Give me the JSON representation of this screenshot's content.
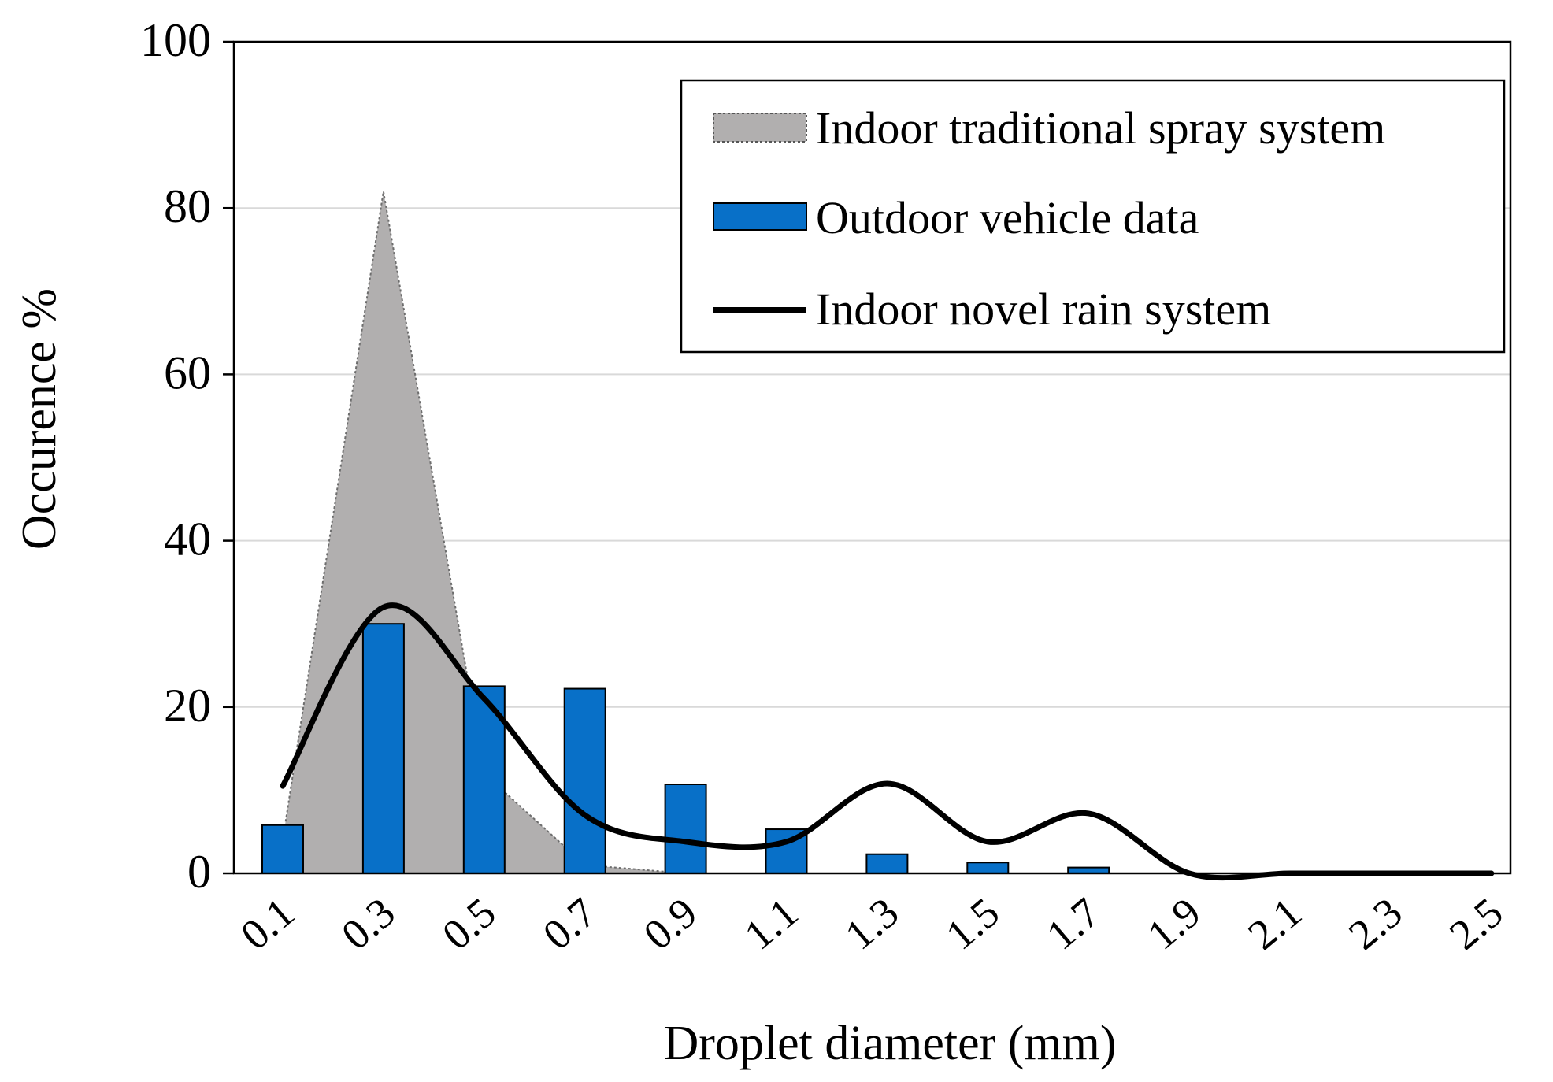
{
  "chart_data": {
    "type": "bar",
    "title": "",
    "xlabel": "Droplet diameter (mm)",
    "ylabel": "Occurence %",
    "ylim": [
      0,
      100
    ],
    "yticks": [
      "0",
      "20",
      "40",
      "60",
      "80",
      "100"
    ],
    "categories": [
      "0.1",
      "0.3",
      "0.5",
      "0.7",
      "0.9",
      "1.1",
      "1.3",
      "1.5",
      "1.7",
      "1.9",
      "2.1",
      "2.3",
      "2.5"
    ],
    "grid": true,
    "legend_position": "top-right",
    "series": [
      {
        "name": "Indoor traditional spray system",
        "kind": "area",
        "color": "#b1afaf",
        "values": [
          4,
          82,
          12,
          1,
          0,
          null,
          null,
          null,
          null,
          null,
          null,
          null,
          null
        ]
      },
      {
        "name": "Outdoor vehicle data",
        "kind": "bar",
        "color": "#0870c8",
        "values": [
          5.8,
          30,
          22.5,
          22.2,
          10.7,
          5.3,
          2.3,
          1.3,
          0.7,
          0,
          0,
          0,
          0
        ]
      },
      {
        "name": "Indoor novel rain system",
        "kind": "line",
        "color": "#000000",
        "values": [
          10.5,
          32,
          21,
          7,
          3.8,
          3.8,
          10.8,
          3.8,
          7.2,
          0,
          0,
          0,
          0
        ]
      }
    ]
  }
}
